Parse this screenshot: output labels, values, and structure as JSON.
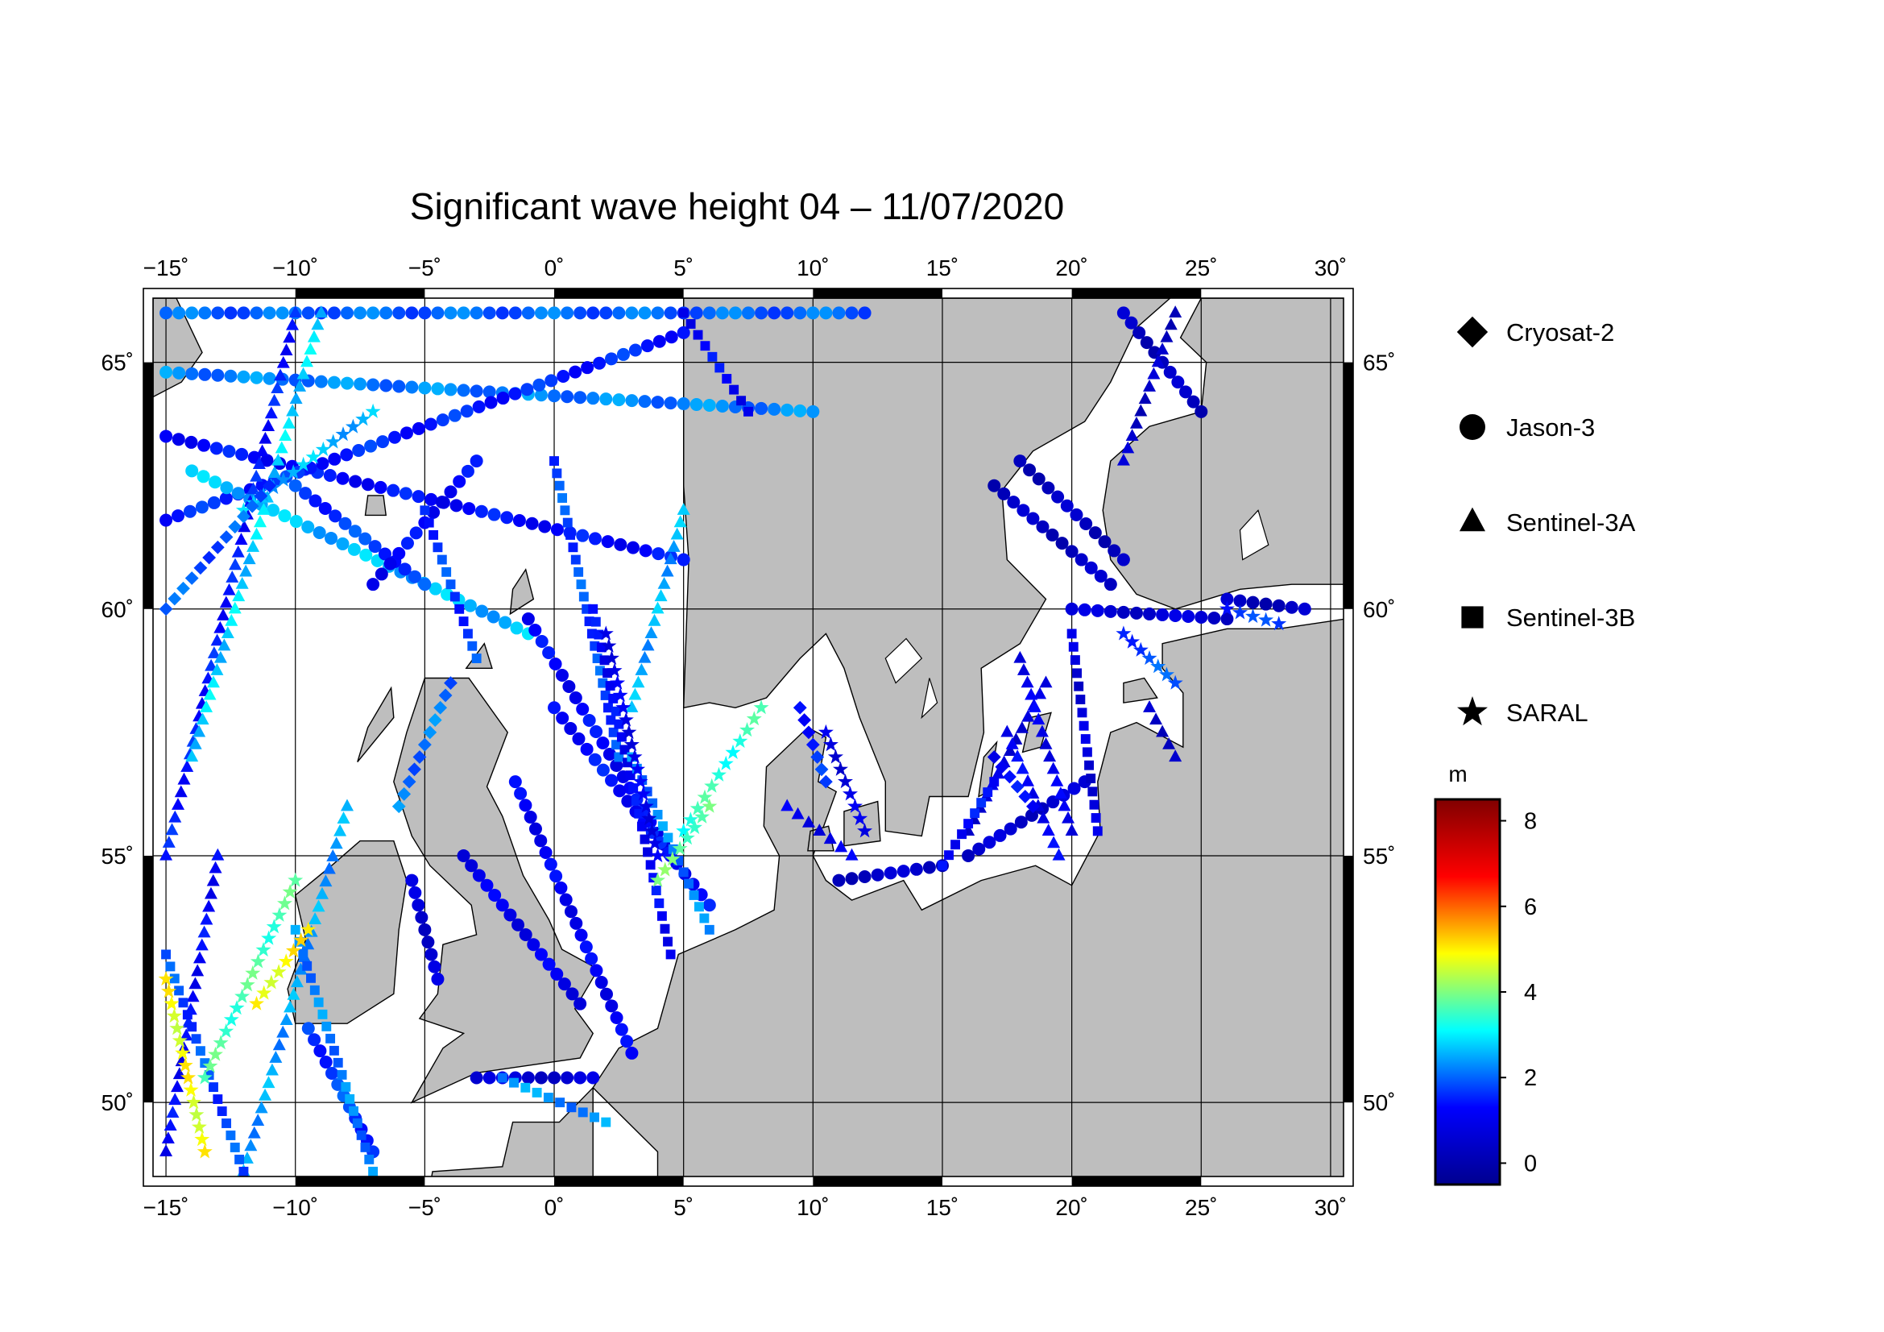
{
  "title": "Significant wave height 04 – 11/07/2020",
  "map": {
    "lon_range": [
      -15.5,
      30.5
    ],
    "lat_range": [
      48.5,
      66.3
    ],
    "lon_ticks": [
      -15,
      -10,
      -5,
      0,
      5,
      10,
      15,
      20,
      25,
      30
    ],
    "lat_ticks": [
      50,
      55,
      60,
      65
    ],
    "lon_tick_labels": [
      "−15˚",
      "−10˚",
      "−5˚",
      "0˚",
      "5˚",
      "10˚",
      "15˚",
      "20˚",
      "25˚",
      "30˚"
    ],
    "lat_tick_labels": [
      "50˚",
      "55˚",
      "60˚",
      "65˚"
    ],
    "grid": true,
    "colors": {
      "land": "#bebebe",
      "sea": "#ffffff",
      "frame": "#000000"
    }
  },
  "legend": {
    "placement": "right",
    "items": [
      {
        "name": "Cryosat-2",
        "marker": "diamond"
      },
      {
        "name": "Jason-3",
        "marker": "circle"
      },
      {
        "name": "Sentinel-3A",
        "marker": "triangle"
      },
      {
        "name": "Sentinel-3B",
        "marker": "square"
      },
      {
        "name": "SARAL",
        "marker": "star"
      }
    ]
  },
  "colorbar": {
    "unit": "m",
    "range": [
      -0.5,
      8.5
    ],
    "ticks": [
      0,
      2,
      4,
      6,
      8
    ],
    "tick_labels": [
      "0",
      "2",
      "4",
      "6",
      "8"
    ],
    "colormap": [
      "#00008f",
      "#0000ff",
      "#00ffff",
      "#ffff00",
      "#ff0000",
      "#800000"
    ]
  },
  "chart_data": {
    "type": "scatter",
    "title": "Significant wave height 04 – 11/07/2020",
    "xlabel": "",
    "ylabel": "",
    "value_unit": "m",
    "note_scale": "color encodes significant wave height",
    "series": [
      {
        "name": "Jason-3",
        "marker": "circle",
        "tracks": [
          {
            "from": [
              -15.0,
              66.0
            ],
            "to": [
              12.0,
              66.0
            ],
            "value": 2.0
          },
          {
            "from": [
              -15.0,
              64.8
            ],
            "to": [
              10.0,
              64.0
            ],
            "value": 2.2
          },
          {
            "from": [
              -15.0,
              63.5
            ],
            "to": [
              5.0,
              61.0
            ],
            "value": 1.3
          },
          {
            "from": [
              -15.0,
              61.8
            ],
            "to": [
              5.0,
              65.6
            ],
            "value": 1.5
          },
          {
            "from": [
              -14.0,
              62.8
            ],
            "to": [
              -1.0,
              59.5
            ],
            "value": 2.6
          },
          {
            "from": [
              -10.0,
              62.5
            ],
            "to": [
              -5.0,
              60.5
            ],
            "value": 1.7
          },
          {
            "from": [
              -7.0,
              60.5
            ],
            "to": [
              -3.0,
              63.0
            ],
            "value": 1.2
          },
          {
            "from": [
              -1.0,
              59.8
            ],
            "to": [
              4.5,
              55.0
            ],
            "value": 1.2
          },
          {
            "from": [
              -1.5,
              56.5
            ],
            "to": [
              3.0,
              51.0
            ],
            "value": 1.1
          },
          {
            "from": [
              0.0,
              58.0
            ],
            "to": [
              6.0,
              54.0
            ],
            "value": 1.3
          },
          {
            "from": [
              -3.5,
              55.0
            ],
            "to": [
              1.0,
              52.0
            ],
            "value": 1.0
          },
          {
            "from": [
              -3.0,
              50.5
            ],
            "to": [
              1.5,
              50.5
            ],
            "value": 0.6
          },
          {
            "from": [
              22.0,
              66.0
            ],
            "to": [
              25.0,
              64.0
            ],
            "value": 0.3
          },
          {
            "from": [
              18.0,
              63.0
            ],
            "to": [
              22.0,
              61.0
            ],
            "value": 0.3
          },
          {
            "from": [
              17.0,
              62.5
            ],
            "to": [
              21.5,
              60.5
            ],
            "value": 0.3
          },
          {
            "from": [
              20.0,
              60.0
            ],
            "to": [
              26.0,
              59.8
            ],
            "value": 0.6
          },
          {
            "from": [
              26.0,
              60.2
            ],
            "to": [
              29.0,
              60.0
            ],
            "value": 0.3
          },
          {
            "from": [
              11.0,
              54.5
            ],
            "to": [
              15.0,
              54.8
            ],
            "value": 0.4
          },
          {
            "from": [
              16.0,
              55.0
            ],
            "to": [
              20.5,
              56.5
            ],
            "value": 0.5
          },
          {
            "from": [
              -5.5,
              54.5
            ],
            "to": [
              -4.5,
              52.5
            ],
            "value": 0.6
          },
          {
            "from": [
              -9.5,
              51.5
            ],
            "to": [
              -7.0,
              49.0
            ],
            "value": 1.7
          }
        ]
      },
      {
        "name": "Sentinel-3A",
        "marker": "triangle",
        "tracks": [
          {
            "from": [
              -15.0,
              55.0
            ],
            "to": [
              -10.0,
              66.0
            ],
            "value": 1.4
          },
          {
            "from": [
              -12.0,
              48.6
            ],
            "to": [
              -8.0,
              56.0
            ],
            "value": 2.4
          },
          {
            "from": [
              -14.0,
              57.0
            ],
            "to": [
              -9.0,
              66.0
            ],
            "value": 2.8
          },
          {
            "from": [
              -15.0,
              49.0
            ],
            "to": [
              -13.0,
              55.0
            ],
            "value": 1.2
          },
          {
            "from": [
              3.0,
              58.0
            ],
            "to": [
              5.0,
              62.0
            ],
            "value": 2.5
          },
          {
            "from": [
              9.0,
              56.0
            ],
            "to": [
              11.5,
              55.0
            ],
            "value": 1.0
          },
          {
            "from": [
              16.0,
              55.5
            ],
            "to": [
              19.0,
              58.5
            ],
            "value": 0.7
          },
          {
            "from": [
              17.5,
              57.5
            ],
            "to": [
              19.5,
              55.0
            ],
            "value": 1.1
          },
          {
            "from": [
              22.0,
              63.0
            ],
            "to": [
              24.0,
              66.0
            ],
            "value": 0.4
          },
          {
            "from": [
              23.0,
              58.0
            ],
            "to": [
              24.0,
              57.0
            ],
            "value": 0.5
          },
          {
            "from": [
              18.0,
              59.0
            ],
            "to": [
              20.0,
              55.5
            ],
            "value": 1.0
          }
        ]
      },
      {
        "name": "Sentinel-3B",
        "marker": "square",
        "tracks": [
          {
            "from": [
              -15.0,
              53.0
            ],
            "to": [
              -12.0,
              48.6
            ],
            "value": 1.8
          },
          {
            "from": [
              -10.0,
              53.5
            ],
            "to": [
              -7.0,
              48.6
            ],
            "value": 2.2
          },
          {
            "from": [
              -5.0,
              62.0
            ],
            "to": [
              -3.0,
              59.0
            ],
            "value": 1.7
          },
          {
            "from": [
              0.0,
              63.0
            ],
            "to": [
              2.5,
              57.0
            ],
            "value": 1.8
          },
          {
            "from": [
              1.5,
              60.0
            ],
            "to": [
              4.5,
              53.0
            ],
            "value": 1.2
          },
          {
            "from": [
              3.0,
              57.0
            ],
            "to": [
              6.0,
              53.5
            ],
            "value": 2.2
          },
          {
            "from": [
              5.0,
              66.0
            ],
            "to": [
              7.5,
              64.0
            ],
            "value": 1.2
          },
          {
            "from": [
              -2.0,
              50.5
            ],
            "to": [
              2.0,
              49.6
            ],
            "value": 2.3
          },
          {
            "from": [
              20.0,
              59.5
            ],
            "to": [
              21.0,
              55.5
            ],
            "value": 0.7
          },
          {
            "from": [
              15.0,
              54.8
            ],
            "to": [
              17.0,
              56.5
            ],
            "value": 1.3
          }
        ]
      },
      {
        "name": "SARAL",
        "marker": "star",
        "tracks": [
          {
            "from": [
              -13.5,
              50.5
            ],
            "to": [
              -10.0,
              54.5
            ],
            "value": 3.6
          },
          {
            "from": [
              -12.0,
              62.0
            ],
            "to": [
              -7.0,
              64.0
            ],
            "value": 2.6
          },
          {
            "from": [
              2.0,
              59.5
            ],
            "to": [
              4.0,
              55.0
            ],
            "value": 1.0
          },
          {
            "from": [
              5.0,
              55.5
            ],
            "to": [
              8.0,
              58.0
            ],
            "value": 3.4
          },
          {
            "from": [
              4.0,
              54.5
            ],
            "to": [
              6.0,
              56.0
            ],
            "value": 3.8
          },
          {
            "from": [
              10.5,
              57.5
            ],
            "to": [
              12.0,
              55.5
            ],
            "value": 0.8
          },
          {
            "from": [
              22.0,
              59.5
            ],
            "to": [
              24.0,
              58.5
            ],
            "value": 1.8
          },
          {
            "from": [
              26.0,
              60.0
            ],
            "to": [
              28.0,
              59.7
            ],
            "value": 1.6
          },
          {
            "from": [
              -15.0,
              52.5
            ],
            "to": [
              -13.5,
              49.0
            ],
            "value": 4.8
          },
          {
            "from": [
              -11.5,
              52.0
            ],
            "to": [
              -9.5,
              53.5
            ],
            "value": 4.9
          }
        ]
      },
      {
        "name": "Cryosat-2",
        "marker": "diamond",
        "tracks": [
          {
            "from": [
              -15.0,
              60.0
            ],
            "to": [
              -11.0,
              62.5
            ],
            "value": 1.9
          },
          {
            "from": [
              -6.0,
              56.0
            ],
            "to": [
              -4.0,
              58.5
            ],
            "value": 2.1
          },
          {
            "from": [
              9.5,
              58.0
            ],
            "to": [
              10.5,
              56.5
            ],
            "value": 1.5
          },
          {
            "from": [
              17.0,
              57.0
            ],
            "to": [
              18.5,
              56.0
            ],
            "value": 1.2
          }
        ]
      }
    ]
  }
}
